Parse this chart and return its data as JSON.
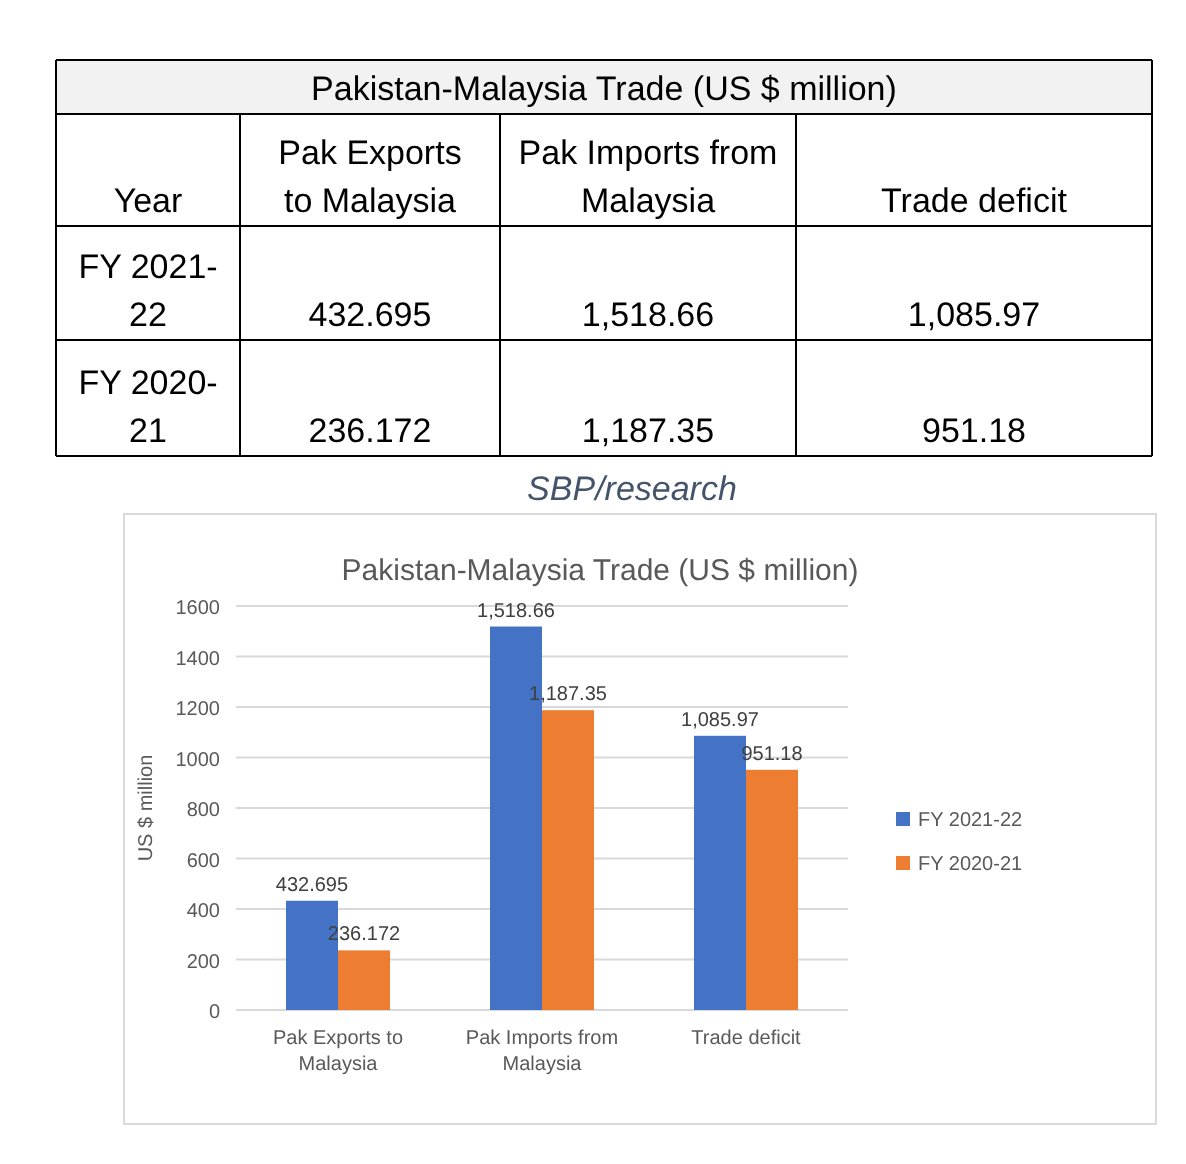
{
  "chart_data": {
    "type": "bar",
    "title": "Pakistan-Malaysia Trade  (US $ million)",
    "ylabel": "US $ million",
    "categories": [
      "Pak Exports to Malaysia",
      "Pak Imports from Malaysia",
      "Trade deficit"
    ],
    "series": [
      {
        "name": "FY 2021-22",
        "color": "#4472c4",
        "values": [
          432.695,
          1518.66,
          1085.97
        ],
        "value_labels": [
          "432.695",
          "1,518.66",
          "1,085.97"
        ]
      },
      {
        "name": "FY 2020-21",
        "color": "#ed7d31",
        "values": [
          236.172,
          1187.35,
          951.18
        ],
        "value_labels": [
          "236.172",
          "1,187.35",
          "951.18"
        ]
      }
    ],
    "ylim": [
      0,
      1600
    ],
    "yticks": [
      0,
      200,
      400,
      600,
      800,
      1000,
      1200,
      1400,
      1600
    ],
    "grid": "y",
    "legend": "right",
    "annotations": [
      "Pakistan-Malaysia Trade (US $ million)",
      "Year",
      "SBP/research"
    ]
  }
}
